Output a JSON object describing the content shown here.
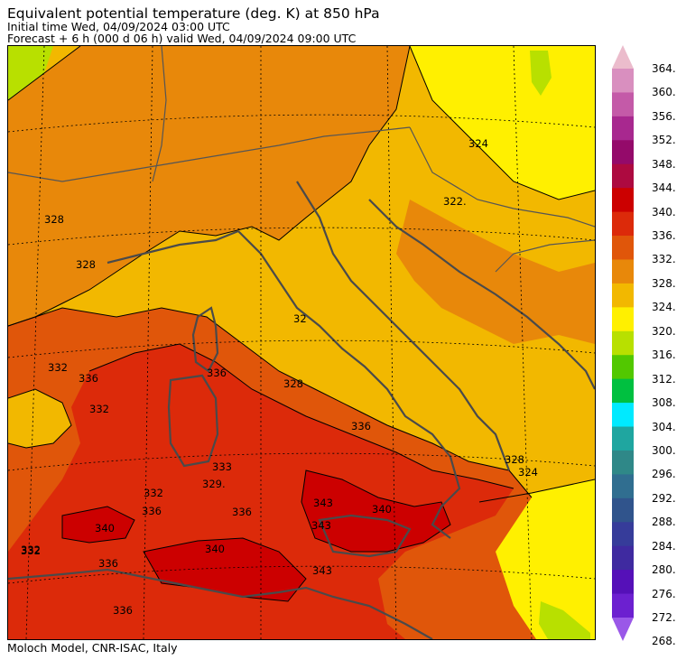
{
  "header": {
    "title": "Equivalent potential temperature (deg. K) at 850 hPa",
    "initial_time": "Initial time  Wed, 04/09/2024  03:00 UTC",
    "forecast": "Forecast  +   6 h  (000 d 06 h)  valid Wed, 04/09/2024 09:00 UTC"
  },
  "footer": {
    "credit": "Moloch Model, CNR-ISAC, Italy"
  },
  "colorbar": {
    "labels": [
      "364.",
      "360.",
      "356.",
      "352.",
      "348.",
      "344.",
      "340.",
      "336.",
      "332.",
      "328.",
      "324.",
      "320.",
      "316.",
      "312.",
      "308.",
      "304.",
      "300.",
      "296.",
      "292.",
      "288.",
      "284.",
      "280.",
      "276.",
      "272.",
      "268."
    ],
    "colors": [
      "#ebbccc",
      "#d98fbf",
      "#c45aa8",
      "#a8288f",
      "#940a6a",
      "#ad0a40",
      "#cc0000",
      "#dc2a0a",
      "#e0560a",
      "#e8880a",
      "#f2b800",
      "#fff000",
      "#b8e000",
      "#52c800",
      "#00c040",
      "#00eaff",
      "#1fa6a0",
      "#2f8888",
      "#306e90",
      "#30548c",
      "#363c9a",
      "#3f2aa0",
      "#5510b8",
      "#6c20d0",
      "#9a58e8"
    ]
  },
  "map": {
    "field": "Equivalent potential temperature",
    "fill_colors": {
      "t320": "#fff000",
      "t324": "#f2b800",
      "t328": "#e8880a",
      "t332": "#e0560a",
      "t336": "#dc2a0a",
      "t340": "#cc0000",
      "t316": "#b8e000"
    },
    "contour_labels": [
      "324",
      "322.",
      "328",
      "328",
      "328",
      "332",
      "332",
      "336",
      "336",
      "336",
      "332",
      "332",
      "329.",
      "333",
      "336",
      "336",
      "336",
      "340",
      "340",
      "343",
      "343",
      "343",
      "340",
      "328",
      "324",
      "332",
      "336",
      "32"
    ]
  }
}
